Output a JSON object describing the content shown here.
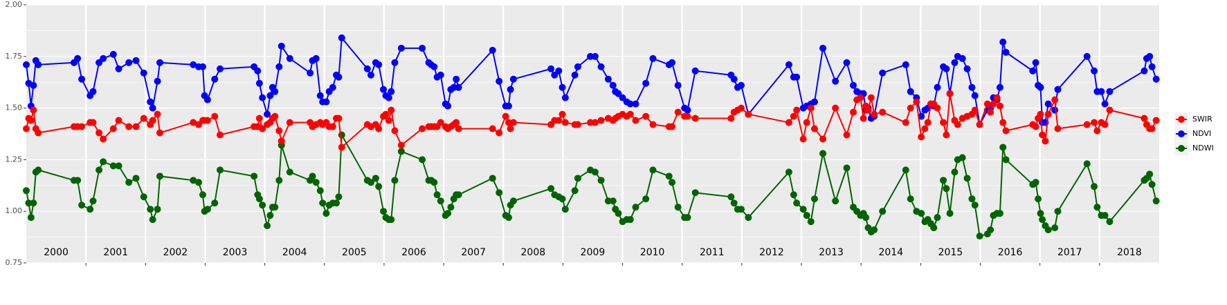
{
  "chart_data": {
    "type": "line",
    "x": [
      2000.0,
      2000.04,
      2000.08,
      2000.12,
      2000.16,
      2000.2,
      2000.8,
      2000.86,
      2000.93,
      2001.07,
      2001.12,
      2001.22,
      2001.29,
      2001.46,
      2001.55,
      2001.72,
      2001.84,
      2001.97,
      2002.08,
      2002.12,
      2002.2,
      2002.24,
      2002.8,
      2002.89,
      2002.96,
      2002.99,
      2003.04,
      2003.16,
      2003.25,
      2003.82,
      2003.88,
      2003.91,
      2003.96,
      2004.04,
      2004.09,
      2004.13,
      2004.17,
      2004.24,
      2004.28,
      2004.42,
      2004.76,
      2004.8,
      2004.86,
      2004.93,
      2004.97,
      2005.03,
      2005.08,
      2005.14,
      2005.2,
      2005.24,
      2005.29,
      2005.72,
      2005.78,
      2005.86,
      2005.91,
      2005.99,
      2006.03,
      2006.08,
      2006.12,
      2006.18,
      2006.29,
      2006.64,
      2006.75,
      2006.79,
      2006.84,
      2006.89,
      2006.95,
      2007.03,
      2007.07,
      2007.12,
      2007.17,
      2007.21,
      2007.25,
      2007.82,
      2007.93,
      2008.04,
      2008.09,
      2008.12,
      2008.17,
      2008.8,
      2008.86,
      2008.93,
      2008.99,
      2009.04,
      2009.2,
      2009.25,
      2009.46,
      2009.54,
      2009.64,
      2009.76,
      2009.84,
      2009.88,
      2009.93,
      2010.0,
      2010.07,
      2010.13,
      2010.22,
      2010.39,
      2010.51,
      2010.78,
      2010.83,
      2010.93,
      2011.04,
      2011.09,
      2011.22,
      2011.82,
      2011.87,
      2011.93,
      2011.99,
      2012.11,
      2012.79,
      2012.87,
      2012.92,
      2013.03,
      2013.09,
      2013.16,
      2013.22,
      2013.36,
      2013.57,
      2013.76,
      2013.87,
      2013.93,
      2013.99,
      2014.04,
      2014.08,
      2014.12,
      2014.17,
      2014.22,
      2014.36,
      2014.75,
      2014.83,
      2014.93,
      2015.01,
      2015.07,
      2015.12,
      2015.17,
      2015.22,
      2015.28,
      2015.38,
      2015.43,
      2015.49,
      2015.57,
      2015.62,
      2015.7,
      2015.78,
      2015.86,
      2015.91,
      2015.99,
      2016.12,
      2016.17,
      2016.22,
      2016.28,
      2016.33,
      2016.38,
      2016.43,
      2016.88,
      2016.93,
      2016.97,
      2017.01,
      2017.04,
      2017.09,
      2017.14,
      2017.25,
      2017.3,
      2017.79,
      2017.91,
      2017.96,
      2018.03,
      2018.09,
      2018.17,
      2018.75,
      2018.79,
      2018.84,
      2018.88,
      2018.95
    ],
    "series": [
      {
        "name": "SWIR",
        "color": "#ff0000",
        "values": [
          1.4,
          1.45,
          1.44,
          1.49,
          1.4,
          1.38,
          1.41,
          1.41,
          1.41,
          1.43,
          1.43,
          1.38,
          1.35,
          1.4,
          1.44,
          1.41,
          1.41,
          1.45,
          1.42,
          1.44,
          1.47,
          1.38,
          1.43,
          1.42,
          1.44,
          1.44,
          1.44,
          1.46,
          1.37,
          1.41,
          1.41,
          1.45,
          1.4,
          1.42,
          1.43,
          1.45,
          1.46,
          1.39,
          1.34,
          1.43,
          1.43,
          1.41,
          1.42,
          1.43,
          1.42,
          1.43,
          1.41,
          1.41,
          1.45,
          1.45,
          1.31,
          1.42,
          1.41,
          1.42,
          1.4,
          1.46,
          1.47,
          1.44,
          1.49,
          1.39,
          1.32,
          1.4,
          1.41,
          1.41,
          1.41,
          1.41,
          1.43,
          1.41,
          1.4,
          1.41,
          1.42,
          1.43,
          1.4,
          1.4,
          1.38,
          1.46,
          1.43,
          1.4,
          1.43,
          1.42,
          1.44,
          1.44,
          1.47,
          1.43,
          1.42,
          1.42,
          1.43,
          1.43,
          1.44,
          1.45,
          1.44,
          1.45,
          1.46,
          1.47,
          1.46,
          1.47,
          1.44,
          1.46,
          1.42,
          1.41,
          1.41,
          1.48,
          1.46,
          1.46,
          1.45,
          1.45,
          1.48,
          1.49,
          1.5,
          1.47,
          1.43,
          1.46,
          1.49,
          1.35,
          1.43,
          1.5,
          1.4,
          1.35,
          1.5,
          1.37,
          1.48,
          1.54,
          1.55,
          1.45,
          1.51,
          1.49,
          1.55,
          1.47,
          1.48,
          1.43,
          1.5,
          1.53,
          1.36,
          1.4,
          1.43,
          1.52,
          1.52,
          1.5,
          1.43,
          1.37,
          1.57,
          1.44,
          1.42,
          1.45,
          1.46,
          1.47,
          1.49,
          1.42,
          1.52,
          1.48,
          1.52,
          1.55,
          1.51,
          1.43,
          1.39,
          1.42,
          1.41,
          1.45,
          1.47,
          1.37,
          1.34,
          1.47,
          1.54,
          1.4,
          1.42,
          1.43,
          1.39,
          1.43,
          1.42,
          1.49,
          1.45,
          1.42,
          1.4,
          1.4,
          1.44
        ]
      },
      {
        "name": "NDVI",
        "color": "#0000ff",
        "values": [
          1.71,
          1.62,
          1.51,
          1.61,
          1.73,
          1.71,
          1.72,
          1.74,
          1.64,
          1.56,
          1.58,
          1.72,
          1.74,
          1.76,
          1.69,
          1.72,
          1.73,
          1.67,
          1.53,
          1.5,
          1.63,
          1.72,
          1.71,
          1.7,
          1.7,
          1.56,
          1.54,
          1.64,
          1.69,
          1.7,
          1.68,
          1.62,
          1.55,
          1.47,
          1.56,
          1.6,
          1.58,
          1.7,
          1.8,
          1.74,
          1.67,
          1.73,
          1.74,
          1.56,
          1.53,
          1.53,
          1.58,
          1.6,
          1.66,
          1.65,
          1.84,
          1.69,
          1.66,
          1.72,
          1.71,
          1.59,
          1.56,
          1.55,
          1.58,
          1.72,
          1.79,
          1.79,
          1.72,
          1.71,
          1.7,
          1.65,
          1.66,
          1.52,
          1.51,
          1.59,
          1.6,
          1.64,
          1.6,
          1.78,
          1.63,
          1.51,
          1.51,
          1.59,
          1.64,
          1.69,
          1.66,
          1.68,
          1.6,
          1.55,
          1.66,
          1.7,
          1.75,
          1.75,
          1.7,
          1.64,
          1.61,
          1.58,
          1.57,
          1.55,
          1.53,
          1.52,
          1.52,
          1.62,
          1.74,
          1.71,
          1.72,
          1.61,
          1.5,
          1.49,
          1.68,
          1.66,
          1.64,
          1.6,
          1.61,
          1.47,
          1.71,
          1.65,
          1.65,
          1.5,
          1.51,
          1.52,
          1.53,
          1.79,
          1.63,
          1.72,
          1.61,
          1.58,
          1.57,
          1.57,
          1.49,
          1.5,
          1.45,
          1.46,
          1.67,
          1.71,
          1.58,
          1.55,
          1.46,
          1.49,
          1.5,
          1.52,
          1.51,
          1.6,
          1.7,
          1.69,
          1.57,
          1.72,
          1.75,
          1.74,
          1.69,
          1.6,
          1.56,
          1.42,
          1.49,
          1.5,
          1.55,
          1.54,
          1.6,
          1.82,
          1.77,
          1.68,
          1.72,
          1.61,
          1.6,
          1.43,
          1.43,
          1.52,
          1.49,
          1.59,
          1.75,
          1.68,
          1.58,
          1.58,
          1.52,
          1.58,
          1.68,
          1.74,
          1.75,
          1.7,
          1.64
        ]
      },
      {
        "name": "NDWI",
        "color": "#006400",
        "values": [
          1.1,
          1.04,
          0.97,
          1.04,
          1.19,
          1.2,
          1.15,
          1.15,
          1.03,
          1.01,
          1.05,
          1.2,
          1.24,
          1.22,
          1.22,
          1.14,
          1.16,
          1.07,
          1.01,
          0.96,
          1.01,
          1.17,
          1.15,
          1.14,
          1.08,
          1.0,
          1.01,
          1.04,
          1.2,
          1.17,
          1.08,
          1.06,
          1.03,
          0.93,
          0.98,
          1.02,
          1.02,
          1.15,
          1.32,
          1.19,
          1.15,
          1.17,
          1.14,
          1.1,
          1.04,
          0.99,
          1.03,
          1.04,
          1.04,
          1.07,
          1.37,
          1.15,
          1.14,
          1.16,
          1.12,
          1.0,
          0.97,
          0.96,
          0.96,
          1.15,
          1.29,
          1.25,
          1.15,
          1.15,
          1.14,
          1.08,
          1.05,
          0.98,
          0.99,
          1.02,
          1.06,
          1.08,
          1.08,
          1.16,
          1.09,
          0.98,
          0.97,
          1.03,
          1.05,
          1.11,
          1.08,
          1.07,
          1.06,
          1.01,
          1.1,
          1.16,
          1.2,
          1.19,
          1.15,
          1.05,
          1.05,
          1.01,
          0.99,
          0.95,
          0.96,
          0.96,
          1.02,
          1.06,
          1.2,
          1.17,
          1.14,
          1.02,
          0.97,
          0.97,
          1.09,
          1.07,
          1.04,
          1.01,
          1.01,
          0.97,
          1.19,
          1.08,
          1.04,
          1.01,
          0.98,
          0.95,
          1.06,
          1.28,
          1.05,
          1.21,
          1.02,
          1.0,
          0.98,
          0.99,
          0.97,
          0.92,
          0.9,
          0.91,
          1.0,
          1.2,
          1.06,
          1.0,
          0.99,
          0.95,
          0.96,
          0.94,
          0.92,
          0.97,
          1.15,
          1.11,
          0.99,
          1.19,
          1.25,
          1.26,
          1.16,
          1.06,
          1.03,
          0.88,
          0.89,
          0.91,
          0.98,
          0.99,
          0.99,
          1.31,
          1.25,
          1.13,
          1.14,
          1.06,
          0.99,
          0.96,
          0.93,
          0.91,
          0.92,
          1.0,
          1.23,
          1.12,
          1.02,
          0.98,
          0.98,
          0.95,
          1.15,
          1.16,
          1.18,
          1.13,
          1.05
        ]
      }
    ],
    "year_labels": [
      "2000",
      "2001",
      "2002",
      "2003",
      "2004",
      "2005",
      "2006",
      "2007",
      "2008",
      "2009",
      "2010",
      "2011",
      "2012",
      "2013",
      "2014",
      "2015",
      "2016",
      "2017",
      "2018"
    ],
    "xlim": [
      2000,
      2019
    ],
    "xticks": [
      2001,
      2002,
      2003,
      2004,
      2005,
      2006,
      2007,
      2008,
      2009,
      2010,
      2011,
      2012,
      2013,
      2014,
      2015,
      2016,
      2017,
      2018
    ],
    "ylim": [
      0.75,
      2.0
    ],
    "yticks": [
      {
        "value": 0.75,
        "label": "0.75"
      },
      {
        "value": 1.0,
        "label": "1.00"
      },
      {
        "value": 1.25,
        "label": "1.25"
      },
      {
        "value": 1.5,
        "label": "1.50"
      },
      {
        "value": 1.75,
        "label": "1.75"
      },
      {
        "value": 2.0,
        "label": "2.00"
      }
    ],
    "grid": true,
    "legend_position": "right"
  }
}
